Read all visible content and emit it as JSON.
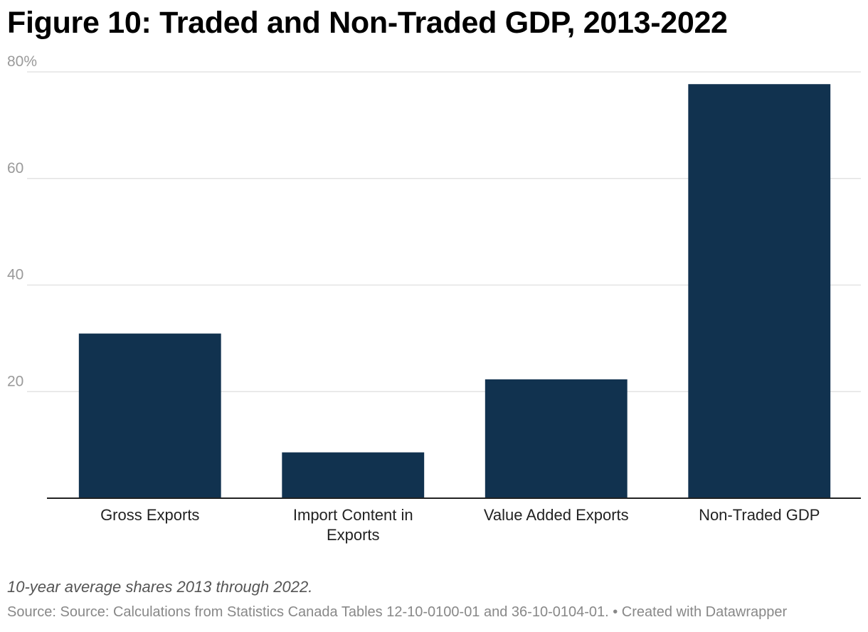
{
  "title": "Figure 10: Traded and Non-Traded GDP, 2013-2022",
  "notes": "10-year average shares 2013 through 2022.",
  "source_text": "Source: Source: Calculations from Statistics Canada Tables 12-10-0100-01 and 36-10-0104-01.",
  "credit_text": "• Created with Datawrapper",
  "colors": {
    "bar": "#11324f",
    "grid": "#e3e3e3",
    "axis": "#222222",
    "tick_label": "#9a9a9a",
    "category_label": "#222222"
  },
  "chart_data": {
    "type": "bar",
    "categories": [
      "Gross Exports",
      "Import Content in Exports",
      "Value Added Exports",
      "Non-Traded GDP"
    ],
    "category_label_lines": [
      [
        "Gross Exports"
      ],
      [
        "Import Content in",
        "Exports"
      ],
      [
        "Value Added Exports"
      ],
      [
        "Non-Traded GDP"
      ]
    ],
    "values": [
      30.9,
      8.6,
      22.3,
      77.7
    ],
    "ylim": [
      0,
      80
    ],
    "yticks": [
      20,
      40,
      60,
      80
    ],
    "ytick_labels": [
      "20",
      "40",
      "60",
      "80%"
    ],
    "xlabel": "",
    "ylabel": "",
    "grid": true,
    "legend": "none"
  }
}
